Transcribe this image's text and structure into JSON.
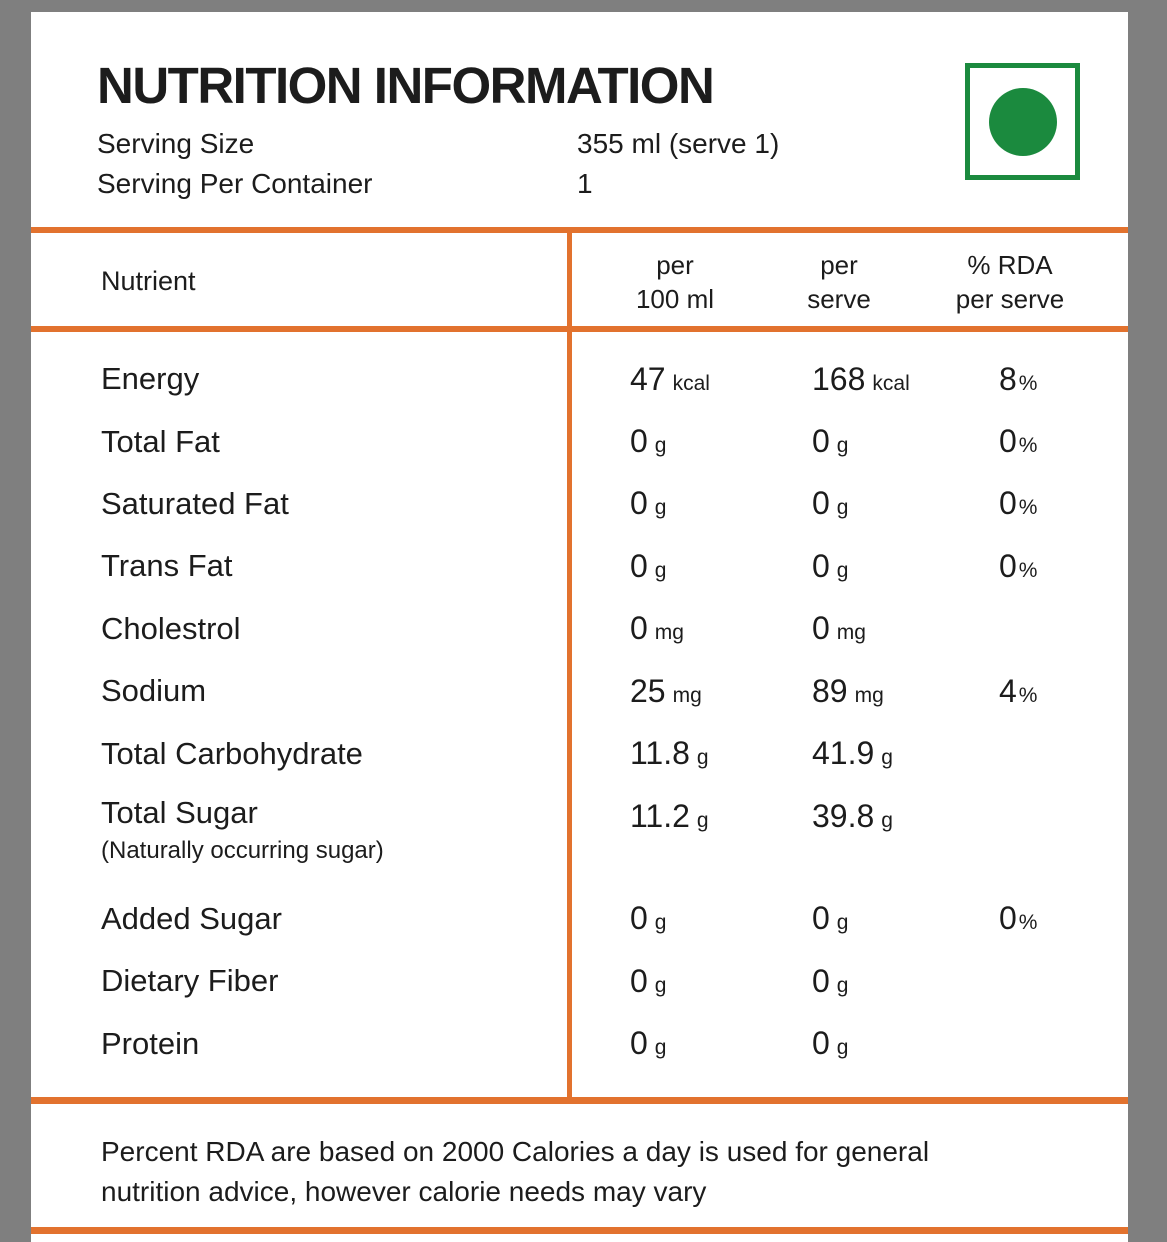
{
  "title": "NUTRITION INFORMATION",
  "serving": [
    {
      "label": "Serving Size",
      "value": "355 ml (serve 1)"
    },
    {
      "label": "Serving Per Container",
      "value": "1"
    }
  ],
  "veg_mark": {
    "meaning": "vegetarian-mark",
    "color": "#1B8A3E"
  },
  "table": {
    "nutrient_header": "Nutrient",
    "col_headers": [
      {
        "line1": "per",
        "line2": "100 ml"
      },
      {
        "line1": "per",
        "line2": "serve"
      },
      {
        "line1": "% RDA",
        "line2": "per serve"
      }
    ],
    "rows": [
      {
        "name": "Energy",
        "per100": {
          "num": "47",
          "unit": "kcal"
        },
        "serve": {
          "num": "168",
          "unit": "kcal"
        },
        "rda": {
          "num": "8",
          "unit": "%"
        }
      },
      {
        "name": "Total Fat",
        "per100": {
          "num": "0",
          "unit": "g"
        },
        "serve": {
          "num": "0",
          "unit": "g"
        },
        "rda": {
          "num": "0",
          "unit": "%"
        }
      },
      {
        "name": "Saturated Fat",
        "per100": {
          "num": "0",
          "unit": "g"
        },
        "serve": {
          "num": "0",
          "unit": "g"
        },
        "rda": {
          "num": "0",
          "unit": "%"
        }
      },
      {
        "name": "Trans Fat",
        "per100": {
          "num": "0",
          "unit": "g"
        },
        "serve": {
          "num": "0",
          "unit": "g"
        },
        "rda": {
          "num": "0",
          "unit": "%"
        }
      },
      {
        "name": "Cholestrol",
        "per100": {
          "num": "0",
          "unit": "mg"
        },
        "serve": {
          "num": "0",
          "unit": "mg"
        },
        "rda": null
      },
      {
        "name": "Sodium",
        "per100": {
          "num": "25",
          "unit": "mg"
        },
        "serve": {
          "num": "89",
          "unit": "mg"
        },
        "rda": {
          "num": "4",
          "unit": "%"
        }
      },
      {
        "name": "Total Carbohydrate",
        "per100": {
          "num": "11.8",
          "unit": "g"
        },
        "serve": {
          "num": "41.9",
          "unit": "g"
        },
        "rda": null
      },
      {
        "name": "Total Sugar",
        "note": "(Naturally occurring sugar)",
        "per100": {
          "num": "11.2",
          "unit": "g"
        },
        "serve": {
          "num": "39.8",
          "unit": "g"
        },
        "rda": null
      },
      {
        "name": "Added Sugar",
        "per100": {
          "num": "0",
          "unit": "g"
        },
        "serve": {
          "num": "0",
          "unit": "g"
        },
        "rda": {
          "num": "0",
          "unit": "%"
        }
      },
      {
        "name": "Dietary Fiber",
        "per100": {
          "num": "0",
          "unit": "g"
        },
        "serve": {
          "num": "0",
          "unit": "g"
        },
        "rda": null
      },
      {
        "name": "Protein",
        "per100": {
          "num": "0",
          "unit": "g"
        },
        "serve": {
          "num": "0",
          "unit": "g"
        },
        "rda": null
      }
    ]
  },
  "footer": {
    "line1": "Percent RDA are based on 2000 Calories a day is used for general",
    "line2": "nutrition advice, however calorie needs may vary"
  },
  "colors": {
    "accent": "#E2722E",
    "frame": "#7F7F7F",
    "green": "#1B8A3E",
    "text": "#1C1C1C"
  }
}
